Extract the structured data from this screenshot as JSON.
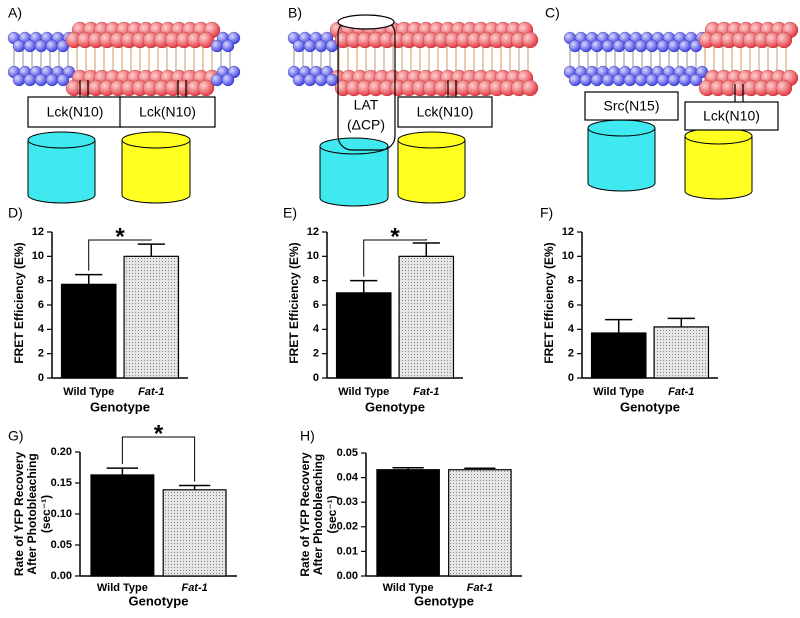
{
  "diagrams": [
    {
      "label": "A)",
      "boxes": [
        "Lck(N10)",
        "Lck(N10)"
      ]
    },
    {
      "label": "B)",
      "lat": [
        "LAT",
        "(ΔCP)"
      ],
      "boxes": [
        "Lck(N10)"
      ]
    },
    {
      "label": "C)",
      "boxes": [
        "Src(N15)",
        "Lck(N10)"
      ]
    }
  ],
  "chart_data": [
    {
      "type": "bar",
      "panel": "D)",
      "ylabel": "FRET Efficiency (E%)",
      "xlabel": "Genotype",
      "categories": [
        "Wild Type",
        "Fat-1"
      ],
      "values": [
        7.7,
        10.0
      ],
      "errors": [
        0.8,
        1.0
      ],
      "colors": [
        "#000000",
        "#d4d4d4"
      ],
      "ylim": [
        0,
        12
      ],
      "yticks": [
        0,
        2,
        4,
        6,
        8,
        10,
        12
      ],
      "significance": "*"
    },
    {
      "type": "bar",
      "panel": "E)",
      "ylabel": "FRET Efficiency (E%)",
      "xlabel": "Genotype",
      "categories": [
        "Wild Type",
        "Fat-1"
      ],
      "values": [
        7.0,
        10.0
      ],
      "errors": [
        1.0,
        1.1
      ],
      "colors": [
        "#000000",
        "#d4d4d4"
      ],
      "ylim": [
        0,
        12
      ],
      "yticks": [
        0,
        2,
        4,
        6,
        8,
        10,
        12
      ],
      "significance": "*"
    },
    {
      "type": "bar",
      "panel": "F)",
      "ylabel": "FRET Efficiency (E%)",
      "xlabel": "Genotype",
      "categories": [
        "Wild Type",
        "Fat-1"
      ],
      "values": [
        3.7,
        4.2
      ],
      "errors": [
        1.1,
        0.7
      ],
      "colors": [
        "#000000",
        "#d4d4d4"
      ],
      "ylim": [
        0,
        12
      ],
      "yticks": [
        0,
        2,
        4,
        6,
        8,
        10,
        12
      ]
    },
    {
      "type": "bar",
      "panel": "G)",
      "ylabel": [
        "Rate of YFP Recovery",
        "After Photobleaching",
        "(sec⁻¹)"
      ],
      "xlabel": "Genotype",
      "categories": [
        "Wild Type",
        "Fat-1"
      ],
      "values": [
        0.163,
        0.139
      ],
      "errors": [
        0.011,
        0.007
      ],
      "colors": [
        "#000000",
        "#d4d4d4"
      ],
      "ylim": [
        0,
        0.2
      ],
      "yticks": [
        {
          "value": 0,
          "label": "0.00"
        },
        {
          "value": 0.05,
          "label": "0.05"
        },
        {
          "value": 0.1,
          "label": "0.10"
        },
        {
          "value": 0.15,
          "label": "0.15"
        },
        {
          "value": 0.2,
          "label": "0.20"
        }
      ],
      "significance": "*"
    },
    {
      "type": "bar",
      "panel": "H)",
      "ylabel": [
        "Rate of YFP Recovery",
        "After Photobleaching",
        "(sec⁻¹)"
      ],
      "xlabel": "Genotype",
      "categories": [
        "Wild Type",
        "Fat-1"
      ],
      "values": [
        0.0432,
        0.0432
      ],
      "errors": [
        0.0008,
        0.0006
      ],
      "colors": [
        "#000000",
        "#d4d4d4"
      ],
      "ylim": [
        0,
        0.05
      ],
      "yticks": [
        {
          "value": 0,
          "label": "0.00"
        },
        {
          "value": 0.01,
          "label": "0.01"
        },
        {
          "value": 0.02,
          "label": "0.02"
        },
        {
          "value": 0.03,
          "label": "0.03"
        },
        {
          "value": 0.04,
          "label": "0.04"
        },
        {
          "value": 0.05,
          "label": "0.05"
        }
      ]
    }
  ]
}
